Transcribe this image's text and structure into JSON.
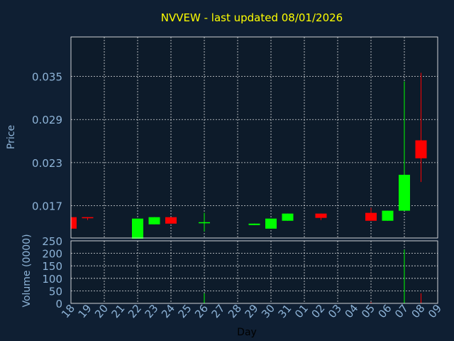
{
  "chart_data": {
    "type": "candlestick",
    "title": "NVVEW - last updated 08/01/2026",
    "ylabel_price": "Price",
    "ylabel_volume": "Volume (0000)",
    "xlabel": "Day",
    "price_ylim": [
      0.0125,
      0.0405
    ],
    "price_ticks": [
      "0.017",
      "0.023",
      "0.029",
      "0.035"
    ],
    "volume_ylim": [
      0,
      250
    ],
    "volume_ticks": [
      "0",
      "50",
      "100",
      "150",
      "200",
      "250"
    ],
    "x_labels": [
      "18",
      "19",
      "20",
      "21",
      "22",
      "23",
      "24",
      "25",
      "26",
      "27",
      "28",
      "29",
      "30",
      "31",
      "01",
      "02",
      "03",
      "04",
      "05",
      "06",
      "07",
      "08",
      "09"
    ],
    "grid": true,
    "candles": [
      {
        "day": "18",
        "open": 0.0154,
        "high": 0.0154,
        "low": 0.0138,
        "close": 0.0138,
        "volume": 0
      },
      {
        "day": "19",
        "open": 0.0154,
        "high": 0.0154,
        "low": 0.015,
        "close": 0.0153,
        "volume": 0
      },
      {
        "day": "22",
        "open": 0.0124,
        "high": 0.0152,
        "low": 0.0124,
        "close": 0.0152,
        "volume": 0
      },
      {
        "day": "23",
        "open": 0.0144,
        "high": 0.0154,
        "low": 0.0144,
        "close": 0.0154,
        "volume": 0
      },
      {
        "day": "24",
        "open": 0.0154,
        "high": 0.0154,
        "low": 0.0145,
        "close": 0.0145,
        "volume": 0
      },
      {
        "day": "26",
        "open": 0.0146,
        "high": 0.016,
        "low": 0.0134,
        "close": 0.0147,
        "volume": 40
      },
      {
        "day": "29",
        "open": 0.0143,
        "high": 0.0145,
        "low": 0.0143,
        "close": 0.0145,
        "volume": 0
      },
      {
        "day": "30",
        "open": 0.0138,
        "high": 0.0152,
        "low": 0.0138,
        "close": 0.0152,
        "volume": 0
      },
      {
        "day": "31",
        "open": 0.0149,
        "high": 0.0159,
        "low": 0.0149,
        "close": 0.0159,
        "volume": 0
      },
      {
        "day": "02",
        "open": 0.0159,
        "high": 0.0159,
        "low": 0.015,
        "close": 0.0153,
        "volume": 0
      },
      {
        "day": "05",
        "open": 0.016,
        "high": 0.0167,
        "low": 0.0149,
        "close": 0.0149,
        "volume": 5
      },
      {
        "day": "06",
        "open": 0.0149,
        "high": 0.0163,
        "low": 0.0149,
        "close": 0.0163,
        "volume": 0
      },
      {
        "day": "07",
        "open": 0.0163,
        "high": 0.0343,
        "low": 0.0163,
        "close": 0.0213,
        "volume": 215
      },
      {
        "day": "08",
        "open": 0.0261,
        "high": 0.0355,
        "low": 0.0203,
        "close": 0.0236,
        "volume": 40
      }
    ],
    "colors": {
      "up": "#00ff00",
      "down": "#ff0000",
      "background": "#0f1f33",
      "panel": "#0d1b2a",
      "title": "#ffff00",
      "tick": "#8eb4d8"
    }
  }
}
